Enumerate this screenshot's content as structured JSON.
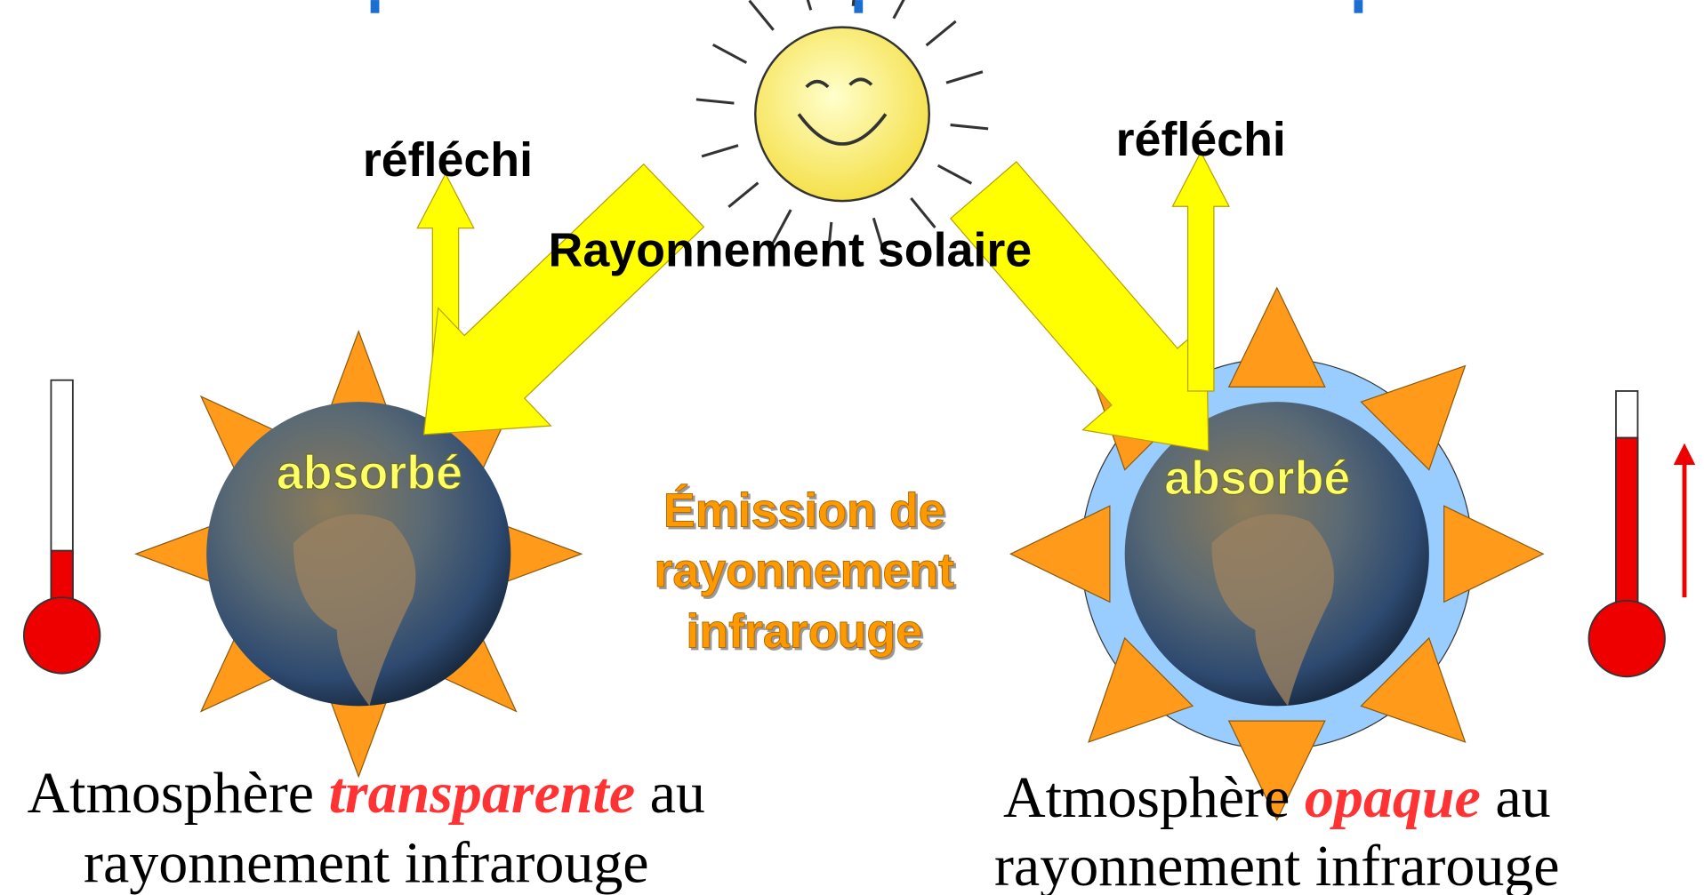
{
  "solar_label": "Rayonnement solaire",
  "emission": [
    "Émission de",
    "rayonnement",
    "infrarouge"
  ],
  "left": {
    "reflected": "réfléchi",
    "absorbed": "absorbé",
    "caption": {
      "start": "Atmosphère",
      "emphasis": "transparente",
      "end": "au",
      "line2": "rayonnement infrarouge"
    }
  },
  "right": {
    "reflected": "réfléchi",
    "absorbed": "absorbé",
    "caption": {
      "start": "Atmosphère",
      "emphasis": "opaque",
      "end": "au",
      "line2": "rayonnement infrarouge"
    }
  }
}
